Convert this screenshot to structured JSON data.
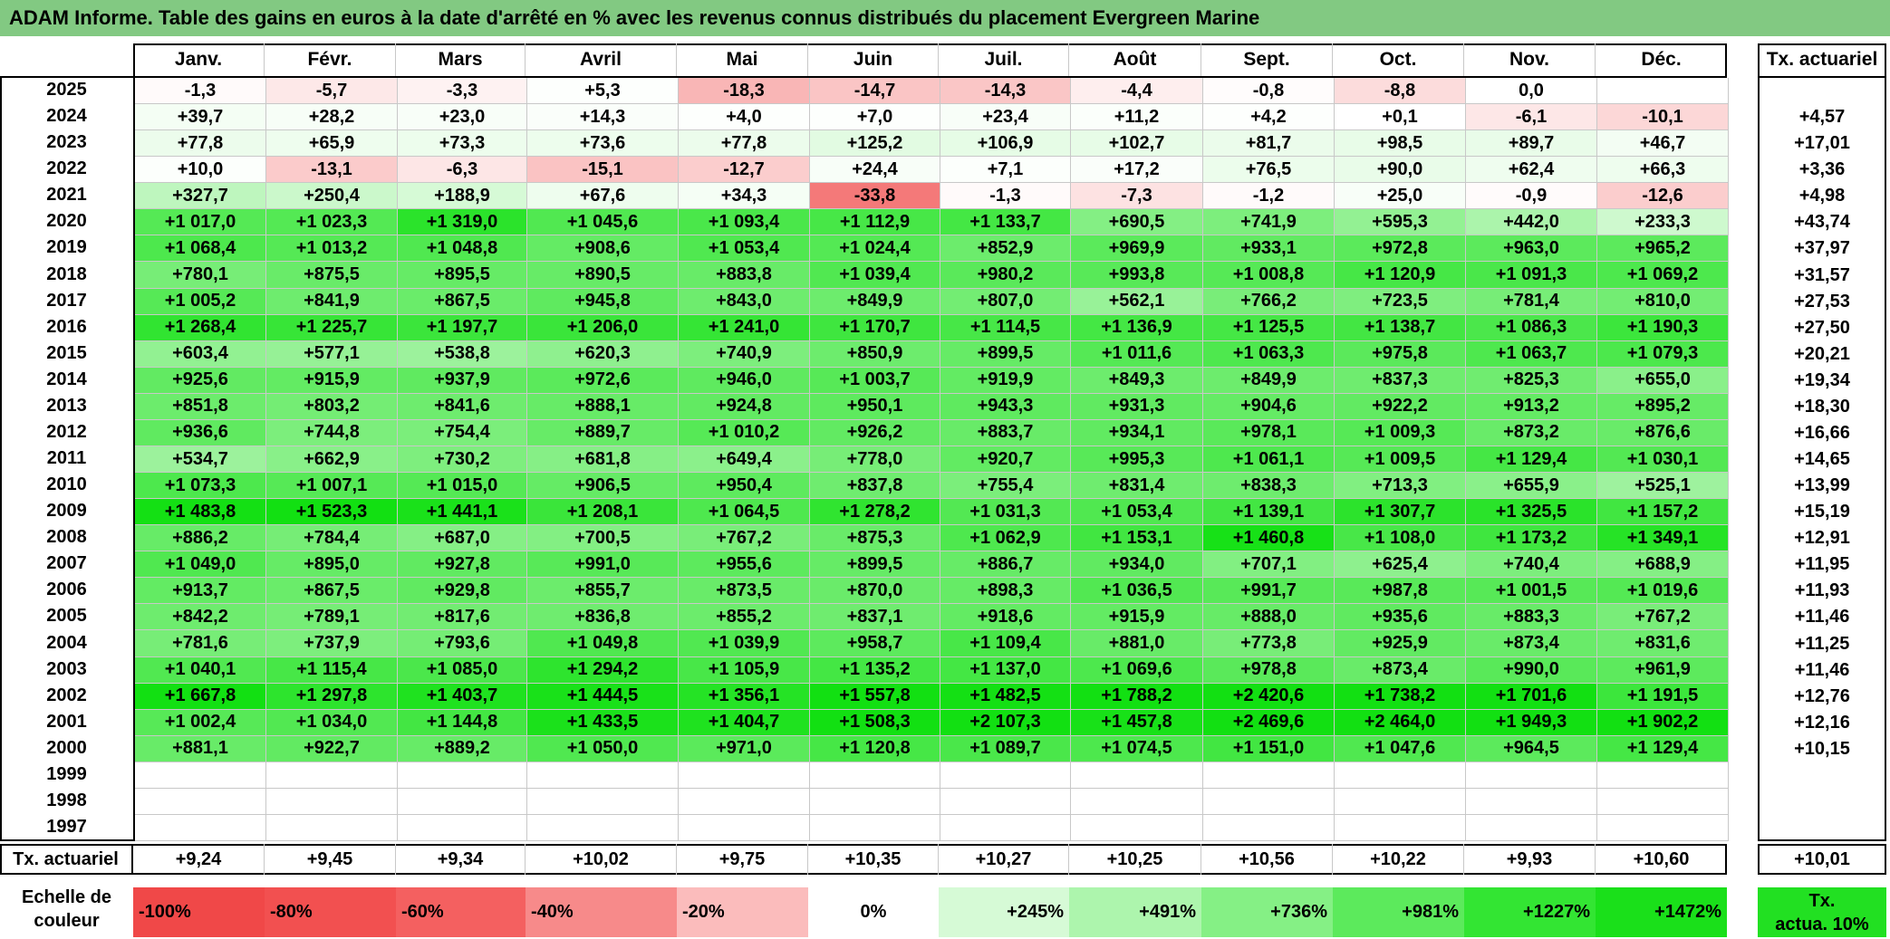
{
  "title": "ADAM Informe. Table des gains en euros à la date d'arrêté en % avec les revenus connus distribués du placement Evergreen Marine",
  "months": [
    "Janv.",
    "Févr.",
    "Mars",
    "Avril",
    "Mai",
    "Juin",
    "Juil.",
    "Août",
    "Sept.",
    "Oct.",
    "Nov.",
    "Déc."
  ],
  "tx_header": "Tx. actuariel",
  "rows": [
    {
      "year": "2025",
      "values": [
        "-1,3",
        "-5,7",
        "-3,3",
        "+5,3",
        "-18,3",
        "-14,7",
        "-14,3",
        "-4,4",
        "-0,8",
        "-8,8",
        "0,0",
        ""
      ],
      "tx": ""
    },
    {
      "year": "2024",
      "values": [
        "+39,7",
        "+28,2",
        "+23,0",
        "+14,3",
        "+4,0",
        "+7,0",
        "+23,4",
        "+11,2",
        "+4,2",
        "+0,1",
        "-6,1",
        "-10,1"
      ],
      "tx": "+4,57"
    },
    {
      "year": "2023",
      "values": [
        "+77,8",
        "+65,9",
        "+73,3",
        "+73,6",
        "+77,8",
        "+125,2",
        "+106,9",
        "+102,7",
        "+81,7",
        "+98,5",
        "+89,7",
        "+46,7"
      ],
      "tx": "+17,01"
    },
    {
      "year": "2022",
      "values": [
        "+10,0",
        "-13,1",
        "-6,3",
        "-15,1",
        "-12,7",
        "+24,4",
        "+7,1",
        "+17,2",
        "+76,5",
        "+90,0",
        "+62,4",
        "+66,3"
      ],
      "tx": "+3,36"
    },
    {
      "year": "2021",
      "values": [
        "+327,7",
        "+250,4",
        "+188,9",
        "+67,6",
        "+34,3",
        "-33,8",
        "-1,3",
        "-7,3",
        "-1,2",
        "+25,0",
        "-0,9",
        "-12,6"
      ],
      "tx": "+4,98"
    },
    {
      "year": "2020",
      "values": [
        "+1 017,0",
        "+1 023,3",
        "+1 319,0",
        "+1 045,6",
        "+1 093,4",
        "+1 112,9",
        "+1 133,7",
        "+690,5",
        "+741,9",
        "+595,3",
        "+442,0",
        "+233,3"
      ],
      "tx": "+43,74"
    },
    {
      "year": "2019",
      "values": [
        "+1 068,4",
        "+1 013,2",
        "+1 048,8",
        "+908,6",
        "+1 053,4",
        "+1 024,4",
        "+852,9",
        "+969,9",
        "+933,1",
        "+972,8",
        "+963,0",
        "+965,2"
      ],
      "tx": "+37,97"
    },
    {
      "year": "2018",
      "values": [
        "+780,1",
        "+875,5",
        "+895,5",
        "+890,5",
        "+883,8",
        "+1 039,4",
        "+980,2",
        "+993,8",
        "+1 008,8",
        "+1 120,9",
        "+1 091,3",
        "+1 069,2"
      ],
      "tx": "+31,57"
    },
    {
      "year": "2017",
      "values": [
        "+1 005,2",
        "+841,9",
        "+867,5",
        "+945,8",
        "+843,0",
        "+849,9",
        "+807,0",
        "+562,1",
        "+766,2",
        "+723,5",
        "+781,4",
        "+810,0"
      ],
      "tx": "+27,53"
    },
    {
      "year": "2016",
      "values": [
        "+1 268,4",
        "+1 225,7",
        "+1 197,7",
        "+1 206,0",
        "+1 241,0",
        "+1 170,7",
        "+1 114,5",
        "+1 136,9",
        "+1 125,5",
        "+1 138,7",
        "+1 086,3",
        "+1 190,3"
      ],
      "tx": "+27,50"
    },
    {
      "year": "2015",
      "values": [
        "+603,4",
        "+577,1",
        "+538,8",
        "+620,3",
        "+740,9",
        "+850,9",
        "+899,5",
        "+1 011,6",
        "+1 063,3",
        "+975,8",
        "+1 063,7",
        "+1 079,3"
      ],
      "tx": "+20,21"
    },
    {
      "year": "2014",
      "values": [
        "+925,6",
        "+915,9",
        "+937,9",
        "+972,6",
        "+946,0",
        "+1 003,7",
        "+919,9",
        "+849,3",
        "+849,9",
        "+837,3",
        "+825,3",
        "+655,0"
      ],
      "tx": "+19,34"
    },
    {
      "year": "2013",
      "values": [
        "+851,8",
        "+803,2",
        "+841,6",
        "+888,1",
        "+924,8",
        "+950,1",
        "+943,3",
        "+931,3",
        "+904,6",
        "+922,2",
        "+913,2",
        "+895,2"
      ],
      "tx": "+18,30"
    },
    {
      "year": "2012",
      "values": [
        "+936,6",
        "+744,8",
        "+754,4",
        "+889,7",
        "+1 010,2",
        "+926,2",
        "+883,7",
        "+934,1",
        "+978,1",
        "+1 009,3",
        "+873,2",
        "+876,6"
      ],
      "tx": "+16,66"
    },
    {
      "year": "2011",
      "values": [
        "+534,7",
        "+662,9",
        "+730,2",
        "+681,8",
        "+649,4",
        "+778,0",
        "+920,7",
        "+995,3",
        "+1 061,1",
        "+1 009,5",
        "+1 129,4",
        "+1 030,1"
      ],
      "tx": "+14,65"
    },
    {
      "year": "2010",
      "values": [
        "+1 073,3",
        "+1 007,1",
        "+1 015,0",
        "+906,5",
        "+950,4",
        "+837,8",
        "+755,4",
        "+831,4",
        "+838,3",
        "+713,3",
        "+655,9",
        "+525,1"
      ],
      "tx": "+13,99"
    },
    {
      "year": "2009",
      "values": [
        "+1 483,8",
        "+1 523,3",
        "+1 441,1",
        "+1 208,1",
        "+1 064,5",
        "+1 278,2",
        "+1 031,3",
        "+1 053,4",
        "+1 139,1",
        "+1 307,7",
        "+1 325,5",
        "+1 157,2"
      ],
      "tx": "+15,19"
    },
    {
      "year": "2008",
      "values": [
        "+886,2",
        "+784,4",
        "+687,0",
        "+700,5",
        "+767,2",
        "+875,3",
        "+1 062,9",
        "+1 153,1",
        "+1 460,8",
        "+1 108,0",
        "+1 173,2",
        "+1 349,1"
      ],
      "tx": "+12,91"
    },
    {
      "year": "2007",
      "values": [
        "+1 049,0",
        "+895,0",
        "+927,8",
        "+991,0",
        "+955,6",
        "+899,5",
        "+886,7",
        "+934,0",
        "+707,1",
        "+625,4",
        "+740,4",
        "+688,9"
      ],
      "tx": "+11,95"
    },
    {
      "year": "2006",
      "values": [
        "+913,7",
        "+867,5",
        "+929,8",
        "+855,7",
        "+873,5",
        "+870,0",
        "+898,3",
        "+1 036,5",
        "+991,7",
        "+987,8",
        "+1 001,5",
        "+1 019,6"
      ],
      "tx": "+11,93"
    },
    {
      "year": "2005",
      "values": [
        "+842,2",
        "+789,1",
        "+817,6",
        "+836,8",
        "+855,2",
        "+837,1",
        "+918,6",
        "+915,9",
        "+888,0",
        "+935,6",
        "+883,3",
        "+767,2"
      ],
      "tx": "+11,46"
    },
    {
      "year": "2004",
      "values": [
        "+781,6",
        "+737,9",
        "+793,6",
        "+1 049,8",
        "+1 039,9",
        "+958,7",
        "+1 109,4",
        "+881,0",
        "+773,8",
        "+925,9",
        "+873,4",
        "+831,6"
      ],
      "tx": "+11,25"
    },
    {
      "year": "2003",
      "values": [
        "+1 040,1",
        "+1 115,4",
        "+1 085,0",
        "+1 294,2",
        "+1 105,9",
        "+1 135,2",
        "+1 137,0",
        "+1 069,6",
        "+978,8",
        "+873,4",
        "+990,0",
        "+961,9"
      ],
      "tx": "+11,46"
    },
    {
      "year": "2002",
      "values": [
        "+1 667,8",
        "+1 297,8",
        "+1 403,7",
        "+1 444,5",
        "+1 356,1",
        "+1 557,8",
        "+1 482,5",
        "+1 788,2",
        "+2 420,6",
        "+1 738,2",
        "+1 701,6",
        "+1 191,5"
      ],
      "tx": "+12,76"
    },
    {
      "year": "2001",
      "values": [
        "+1 002,4",
        "+1 034,0",
        "+1 144,8",
        "+1 433,5",
        "+1 404,7",
        "+1 508,3",
        "+2 107,3",
        "+1 457,8",
        "+2 469,6",
        "+2 464,0",
        "+1 949,3",
        "+1 902,2"
      ],
      "tx": "+12,16"
    },
    {
      "year": "2000",
      "values": [
        "+881,1",
        "+922,7",
        "+889,2",
        "+1 050,0",
        "+971,0",
        "+1 120,8",
        "+1 089,7",
        "+1 074,5",
        "+1 151,0",
        "+1 047,6",
        "+964,5",
        "+1 129,4"
      ],
      "tx": "+10,15"
    },
    {
      "year": "1999",
      "values": [
        "",
        "",
        "",
        "",
        "",
        "",
        "",
        "",
        "",
        "",
        "",
        ""
      ],
      "tx": ""
    },
    {
      "year": "1998",
      "values": [
        "",
        "",
        "",
        "",
        "",
        "",
        "",
        "",
        "",
        "",
        "",
        ""
      ],
      "tx": ""
    },
    {
      "year": "1997",
      "values": [
        "",
        "",
        "",
        "",
        "",
        "",
        "",
        "",
        "",
        "",
        "",
        ""
      ],
      "tx": ""
    }
  ],
  "footer": {
    "label": "Tx. actuariel",
    "values": [
      "+9,24",
      "+9,45",
      "+9,34",
      "+10,02",
      "+9,75",
      "+10,35",
      "+10,27",
      "+10,25",
      "+10,56",
      "+10,22",
      "+9,93",
      "+10,60"
    ],
    "total": "+10,01"
  },
  "scale": {
    "label_line1": "Echelle de",
    "label_line2": "couleur",
    "steps": [
      {
        "text": "-100%",
        "color": "#f04848"
      },
      {
        "text": "-80%",
        "color": "#f25050"
      },
      {
        "text": "-60%",
        "color": "#f46060"
      },
      {
        "text": "-40%",
        "color": "#f78a8a"
      },
      {
        "text": "-20%",
        "color": "#fbbcbc"
      },
      {
        "text": "0%",
        "color": "#ffffff"
      },
      {
        "text": "+245%",
        "color": "#d6fad6"
      },
      {
        "text": "+491%",
        "color": "#adf5ad"
      },
      {
        "text": "+736%",
        "color": "#85f085"
      },
      {
        "text": "+981%",
        "color": "#5cea5c"
      },
      {
        "text": "+1227%",
        "color": "#33e533"
      },
      {
        "text": "+1472%",
        "color": "#1ae01a"
      }
    ],
    "legend_line1": "Tx.",
    "legend_line2": "actua. 10%",
    "legend_color": "#22e022"
  },
  "colors": {
    "title_bg": "#82c982"
  }
}
